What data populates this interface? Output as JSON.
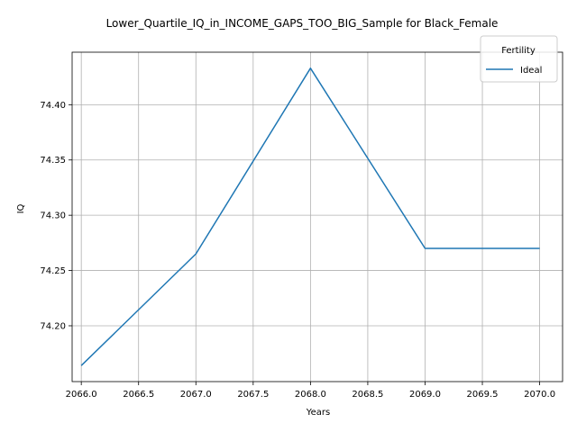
{
  "chart_data": {
    "type": "line",
    "title": "Lower_Quartile_IQ_in_INCOME_GAPS_TOO_BIG_Sample for Black_Female",
    "xlabel": "Years",
    "ylabel": "IQ",
    "x": [
      2066,
      2067,
      2068,
      2069,
      2070
    ],
    "series": [
      {
        "name": "Ideal",
        "values": [
          74.164,
          74.265,
          74.433,
          74.27,
          74.27
        ],
        "color": "#1f77b4"
      }
    ],
    "xlim": [
      2065.92,
      2070.2
    ],
    "ylim": [
      74.1495,
      74.4475
    ],
    "xticks": [
      "2066.0",
      "2066.5",
      "2067.0",
      "2067.5",
      "2068.0",
      "2068.5",
      "2069.0",
      "2069.5",
      "2070.0"
    ],
    "yticks": [
      "74.20",
      "74.25",
      "74.30",
      "74.35",
      "74.40"
    ],
    "grid": true,
    "legend": {
      "title": "Fertility",
      "placement": "top-right"
    }
  }
}
